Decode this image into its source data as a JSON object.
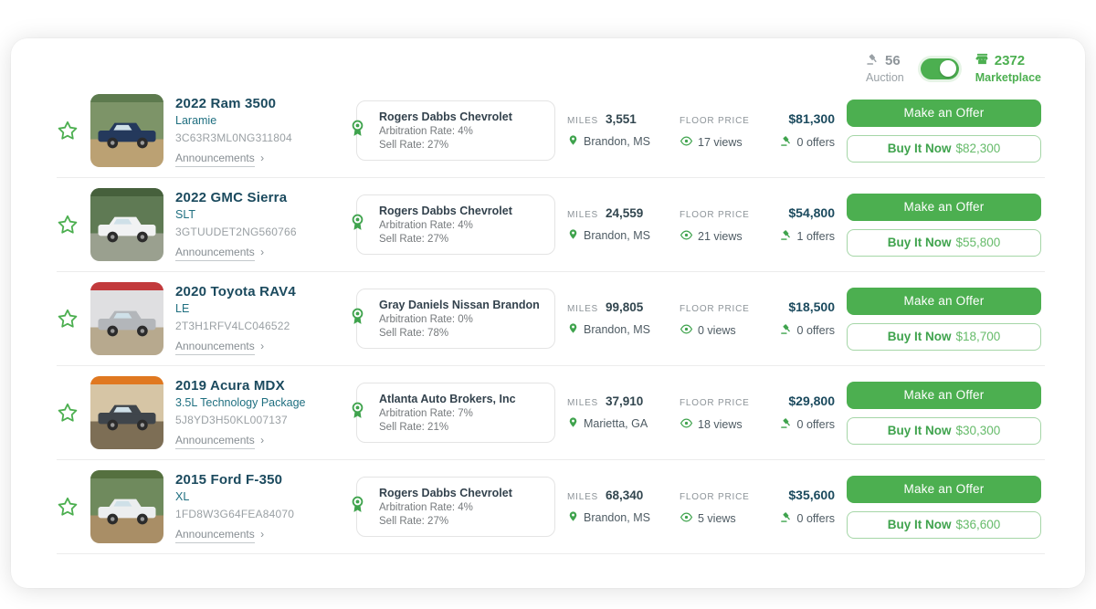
{
  "header": {
    "auction": {
      "count": "56",
      "label": "Auction"
    },
    "marketplace": {
      "count": "2372",
      "label": "Marketplace"
    },
    "toggle_state": "marketplace"
  },
  "labels": {
    "miles": "MILES",
    "floor_price": "FLOOR PRICE",
    "announcements": "Announcements",
    "announcements_chevron": "›",
    "make_offer": "Make an Offer",
    "buy_it_now": "Buy It Now"
  },
  "colors": {
    "accent_green": "#4caf50",
    "title_navy": "#1b4a5e",
    "trim_teal": "#1f6f80",
    "muted_gray": "#8d9499"
  },
  "listings": [
    {
      "title": "2022 Ram 3500",
      "trim": "Laramie",
      "vin": "3C63R3ML0NG311804",
      "dealer": {
        "name": "Rogers Dabbs Chevrolet",
        "arbitration": "Arbitration Rate: 4%",
        "sell": "Sell Rate: 27%"
      },
      "miles": "3,551",
      "location": "Brandon, MS",
      "floor_price": "$81,300",
      "views": "17 views",
      "offers": "0 offers",
      "buy_now_price": "$82,300",
      "image": {
        "sky": "#7d9468",
        "ground": "#bba173",
        "vehicle": "#24395c",
        "accent": "#5d7a4e"
      }
    },
    {
      "title": "2022 GMC Sierra",
      "trim": "SLT",
      "vin": "3GTUUDET2NG560766",
      "dealer": {
        "name": "Rogers Dabbs Chevrolet",
        "arbitration": "Arbitration Rate: 4%",
        "sell": "Sell Rate: 27%"
      },
      "miles": "24,559",
      "location": "Brandon, MS",
      "floor_price": "$54,800",
      "views": "21 views",
      "offers": "1 offers",
      "buy_now_price": "$55,800",
      "image": {
        "sky": "#5f7a54",
        "ground": "#9aa08f",
        "vehicle": "#f1f2f3",
        "accent": "#46603c"
      }
    },
    {
      "title": "2020 Toyota RAV4",
      "trim": "LE",
      "vin": "2T3H1RFV4LC046522",
      "dealer": {
        "name": "Gray Daniels Nissan Brandon",
        "arbitration": "Arbitration Rate: 0%",
        "sell": "Sell Rate: 78%"
      },
      "miles": "99,805",
      "location": "Brandon, MS",
      "floor_price": "$18,500",
      "views": "0 views",
      "offers": "0 offers",
      "buy_now_price": "$18,700",
      "image": {
        "sky": "#dfdfe1",
        "ground": "#b7a98e",
        "vehicle": "#b3b6ba",
        "accent": "#c23a3c"
      }
    },
    {
      "title": "2019 Acura MDX",
      "trim": "3.5L Technology Package",
      "vin": "5J8YD3H50KL007137",
      "dealer": {
        "name": "Atlanta Auto Brokers, Inc",
        "arbitration": "Arbitration Rate: 7%",
        "sell": "Sell Rate: 21%"
      },
      "miles": "37,910",
      "location": "Marietta, GA",
      "floor_price": "$29,800",
      "views": "18 views",
      "offers": "0 offers",
      "buy_now_price": "$30,300",
      "image": {
        "sky": "#d6c5a5",
        "ground": "#7d6e55",
        "vehicle": "#3f454b",
        "accent": "#e07820"
      }
    },
    {
      "title": "2015 Ford F-350",
      "trim": "XL",
      "vin": "1FD8W3G64FEA84070",
      "dealer": {
        "name": "Rogers Dabbs Chevrolet",
        "arbitration": "Arbitration Rate: 4%",
        "sell": "Sell Rate: 27%"
      },
      "miles": "68,340",
      "location": "Brandon, MS",
      "floor_price": "$35,600",
      "views": "5 views",
      "offers": "0 offers",
      "buy_now_price": "$36,600",
      "image": {
        "sky": "#6f8a5d",
        "ground": "#a98e66",
        "vehicle": "#eceeef",
        "accent": "#55703f"
      }
    }
  ]
}
